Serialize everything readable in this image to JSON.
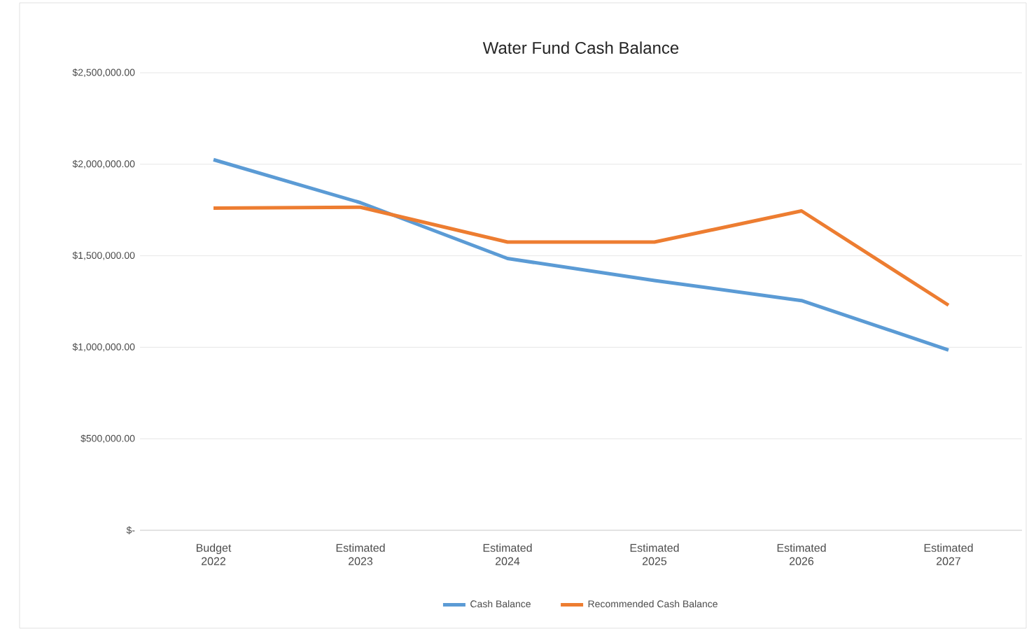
{
  "chart_data": {
    "type": "line",
    "title": "Water Fund Cash Balance",
    "categories": [
      "Budget 2022",
      "Estimated 2023",
      "Estimated 2024",
      "Estimated 2025",
      "Estimated 2026",
      "Estimated 2027"
    ],
    "series": [
      {
        "name": "Cash Balance",
        "color": "#5b9bd5",
        "values": [
          2025000,
          1790000,
          1485000,
          1365000,
          1255000,
          985000
        ]
      },
      {
        "name": "Recommended Cash Balance",
        "color": "#ed7d31",
        "values": [
          1760000,
          1765000,
          1575000,
          1575000,
          1745000,
          1230000
        ]
      }
    ],
    "ylim": [
      0,
      2500000
    ],
    "yticks": [
      {
        "value": 0,
        "label": "$-"
      },
      {
        "value": 500000,
        "label": "$500,000.00"
      },
      {
        "value": 1000000,
        "label": "$1,000,000.00"
      },
      {
        "value": 1500000,
        "label": "$1,500,000.00"
      },
      {
        "value": 2000000,
        "label": "$2,000,000.00"
      },
      {
        "value": 2500000,
        "label": "$2,500,000.00"
      }
    ],
    "grid": "y",
    "legend": "bottom",
    "marker": "none",
    "line_style": "solid"
  }
}
